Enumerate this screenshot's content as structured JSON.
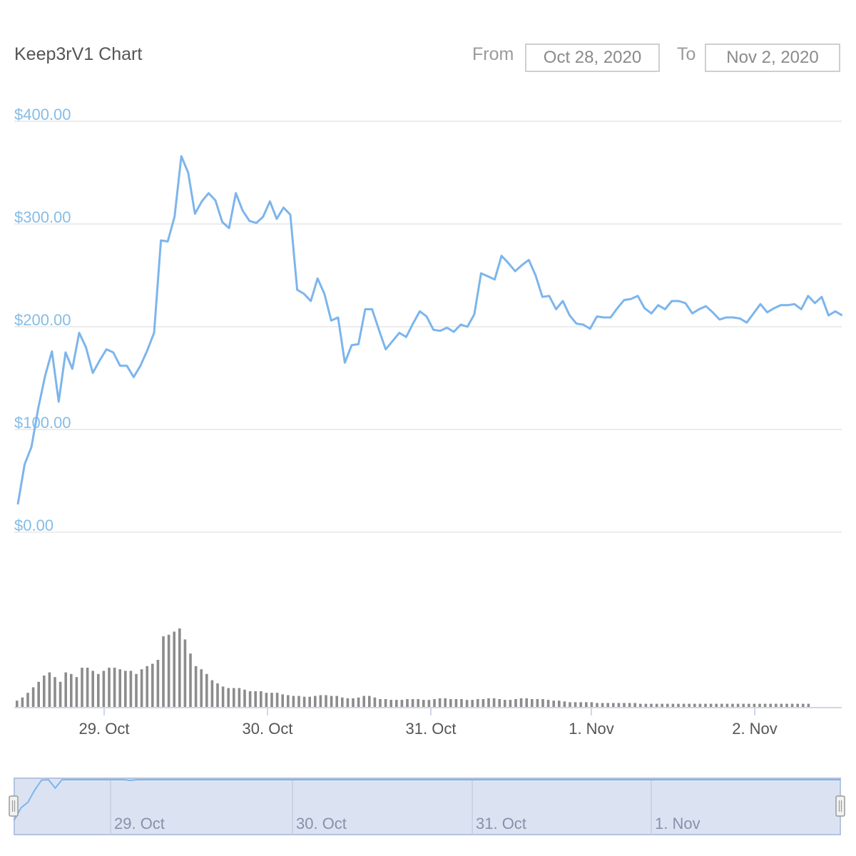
{
  "header": {
    "title": "Keep3rV1 Chart",
    "from_label": "From",
    "from_value": "Oct 28, 2020",
    "to_label": "To",
    "to_value": "Nov 2, 2020"
  },
  "colors": {
    "price_line": "#7cb5ec",
    "volume_bar": "#8c8c8c",
    "grid": "#e6e6e6",
    "navigator_fill": "#dbe3f3",
    "navigator_border": "#b5c3e0",
    "y_tick_text": "#85bde6"
  },
  "chart_data": [
    {
      "type": "line",
      "title": "Keep3rV1 Chart",
      "x_start": "2020-10-28 11:00",
      "x_interval_hours": 1,
      "series": [
        {
          "values": [
            27,
            66,
            83,
            121,
            152,
            176,
            127,
            175,
            159,
            194,
            180,
            155,
            167,
            178,
            175,
            162,
            162,
            151,
            162,
            177,
            194,
            284,
            283,
            307,
            366,
            350,
            310,
            322,
            330,
            323,
            302,
            296,
            330,
            313,
            303,
            301,
            307,
            322,
            305,
            316,
            309,
            236,
            232,
            225,
            247,
            232,
            206,
            209,
            165,
            182,
            183,
            217,
            217,
            197,
            178,
            186,
            194,
            190,
            203,
            215,
            210,
            197,
            196,
            199,
            195,
            202,
            200,
            212,
            252,
            249,
            246,
            269,
            262,
            254,
            260,
            265,
            250,
            229,
            230,
            217,
            225,
            211,
            203,
            202,
            198,
            210,
            209,
            209,
            218,
            226,
            227,
            230,
            218,
            213,
            221,
            217,
            225,
            225,
            223,
            213,
            217,
            220,
            214,
            207,
            209,
            209,
            208,
            204,
            213,
            222,
            214,
            218,
            221,
            221,
            222,
            217,
            230,
            223,
            229,
            211,
            215,
            211
          ]
        }
      ],
      "y_tick_labels": [
        "$0.00",
        "$100.00",
        "$200.00",
        "$300.00",
        "$400.00"
      ],
      "y_ticks": [
        0,
        100,
        200,
        300,
        400
      ],
      "ylim": [
        0,
        400
      ],
      "x_ticks": [
        "2020-10-29",
        "2020-10-30",
        "2020-10-31",
        "2020-11-01",
        "2020-11-02"
      ],
      "x_tick_labels": [
        "29. Oct",
        "30. Oct",
        "31. Oct",
        "1. Nov",
        "2. Nov"
      ],
      "grid": true
    },
    {
      "type": "bar",
      "title": "",
      "x_start": "2020-10-28 11:00",
      "x_interval_hours": 1,
      "values": [
        8,
        12,
        18,
        25,
        32,
        40,
        44,
        38,
        32,
        44,
        42,
        38,
        50,
        50,
        46,
        42,
        46,
        50,
        50,
        48,
        46,
        46,
        42,
        48,
        52,
        55,
        60,
        90,
        92,
        96,
        100,
        86,
        68,
        52,
        48,
        42,
        34,
        30,
        26,
        24,
        24,
        24,
        22,
        20,
        20,
        20,
        18,
        18,
        18,
        16,
        15,
        14,
        14,
        13,
        13,
        14,
        15,
        15,
        14,
        14,
        12,
        11,
        11,
        12,
        14,
        14,
        12,
        10,
        10,
        9,
        9,
        9,
        10,
        10,
        10,
        9,
        9,
        10,
        11,
        11,
        10,
        10,
        10,
        9,
        9,
        10,
        10,
        11,
        11,
        10,
        9,
        9,
        10,
        11,
        11,
        10,
        10,
        10,
        9,
        8,
        8,
        7,
        6,
        6,
        6,
        6,
        6,
        5,
        5,
        5,
        5,
        5,
        5,
        5,
        5,
        4,
        4,
        4,
        4,
        4,
        4,
        4,
        4,
        4,
        4,
        4,
        4,
        4,
        4,
        4,
        4,
        4,
        4,
        4,
        4,
        4,
        4,
        4,
        4,
        4,
        4,
        4,
        4,
        4,
        4,
        4,
        4
      ],
      "x_tick_labels": [
        "29. Oct",
        "30. Oct",
        "31. Oct",
        "1. Nov",
        "2. Nov"
      ]
    }
  ],
  "navigator": {
    "x_tick_labels": [
      "29. Oct",
      "30. Oct",
      "31. Oct",
      "1. Nov"
    ],
    "left_handle": "left-handle",
    "right_handle": "right-handle"
  }
}
